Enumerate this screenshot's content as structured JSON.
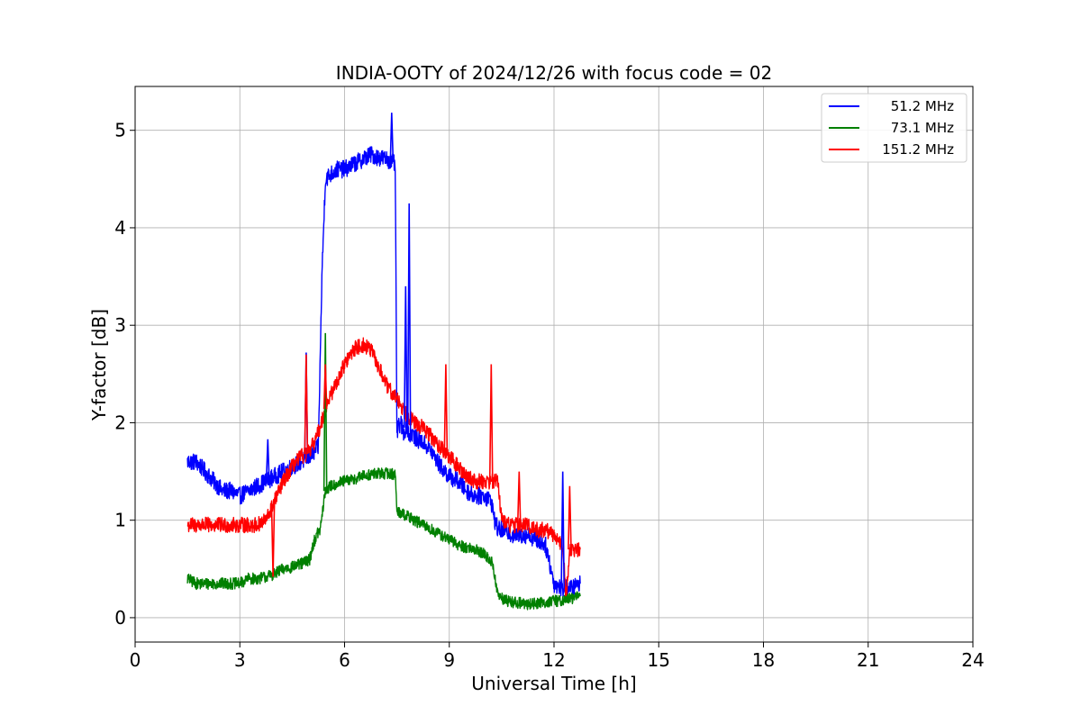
{
  "chart_data": {
    "type": "line",
    "title": "INDIA-OOTY of 2024/12/26 with focus code = 02",
    "xlabel": "Universal Time [h]",
    "ylabel": "Y-factor [dB]",
    "xlim": [
      0,
      24
    ],
    "ylim": [
      -0.25,
      5.45
    ],
    "xticks": [
      0,
      3,
      6,
      9,
      12,
      15,
      18,
      21,
      24
    ],
    "yticks": [
      0,
      1,
      2,
      3,
      4,
      5
    ],
    "grid": true,
    "legend_position": "top-right",
    "series": [
      {
        "name": "51.2 MHz",
        "color": "#0000ff",
        "x": [
          1.5,
          1.75,
          2.0,
          2.25,
          2.5,
          2.75,
          3.0,
          3.25,
          3.5,
          3.75,
          4.0,
          4.25,
          4.5,
          4.75,
          5.0,
          5.25,
          5.35,
          5.45,
          5.6,
          5.8,
          6.0,
          6.25,
          6.5,
          6.75,
          7.0,
          7.25,
          7.45,
          7.5,
          7.6,
          7.7,
          7.8,
          7.85,
          7.95,
          8.0,
          8.25,
          8.5,
          8.75,
          9.0,
          9.25,
          9.5,
          9.75,
          10.0,
          10.2,
          10.3,
          10.4,
          10.6,
          10.8,
          11.0,
          11.25,
          11.5,
          11.75,
          11.85,
          12.0,
          12.25,
          12.5,
          12.75
        ],
        "y": [
          1.6,
          1.6,
          1.5,
          1.4,
          1.3,
          1.3,
          1.25,
          1.3,
          1.35,
          1.4,
          1.45,
          1.5,
          1.55,
          1.6,
          1.65,
          1.75,
          3.5,
          4.5,
          4.55,
          4.6,
          4.6,
          4.65,
          4.7,
          4.75,
          4.72,
          4.7,
          4.65,
          1.9,
          2.0,
          1.9,
          2.0,
          1.85,
          1.9,
          1.85,
          1.8,
          1.7,
          1.55,
          1.45,
          1.4,
          1.3,
          1.25,
          1.25,
          1.2,
          1.0,
          0.9,
          0.9,
          0.85,
          0.85,
          0.85,
          0.8,
          0.75,
          0.6,
          0.35,
          0.3,
          0.3,
          0.35
        ]
      },
      {
        "name": "73.1 MHz",
        "color": "#008000",
        "x": [
          1.5,
          1.75,
          2.0,
          2.25,
          2.5,
          2.75,
          3.0,
          3.25,
          3.5,
          3.75,
          4.0,
          4.25,
          4.5,
          4.75,
          5.0,
          5.1,
          5.2,
          5.3,
          5.45,
          5.6,
          5.8,
          6.0,
          6.25,
          6.5,
          6.75,
          7.0,
          7.25,
          7.45,
          7.5,
          7.75,
          8.0,
          8.25,
          8.5,
          8.75,
          9.0,
          9.25,
          9.5,
          9.75,
          10.0,
          10.25,
          10.35,
          10.45,
          10.6,
          10.8,
          11.0,
          11.25,
          11.5,
          11.75,
          12.0,
          12.25,
          12.5,
          12.75
        ],
        "y": [
          0.4,
          0.35,
          0.35,
          0.35,
          0.35,
          0.35,
          0.35,
          0.4,
          0.4,
          0.42,
          0.45,
          0.5,
          0.52,
          0.55,
          0.6,
          0.75,
          0.85,
          0.9,
          1.3,
          1.35,
          1.38,
          1.4,
          1.42,
          1.45,
          1.47,
          1.48,
          1.48,
          1.47,
          1.1,
          1.05,
          1.0,
          0.95,
          0.9,
          0.85,
          0.8,
          0.75,
          0.72,
          0.7,
          0.65,
          0.55,
          0.3,
          0.2,
          0.18,
          0.16,
          0.15,
          0.14,
          0.15,
          0.16,
          0.17,
          0.18,
          0.2,
          0.22
        ]
      },
      {
        "name": "151.2 MHz",
        "color": "#ff0000",
        "x": [
          1.5,
          1.75,
          2.0,
          2.25,
          2.5,
          2.75,
          3.0,
          3.25,
          3.5,
          3.75,
          4.0,
          4.25,
          4.5,
          4.75,
          5.0,
          5.25,
          5.5,
          5.75,
          6.0,
          6.25,
          6.5,
          6.75,
          7.0,
          7.25,
          7.5,
          7.75,
          8.0,
          8.25,
          8.5,
          8.75,
          9.0,
          9.25,
          9.5,
          9.75,
          10.0,
          10.25,
          10.4,
          10.5,
          10.75,
          11.0,
          11.25,
          11.5,
          11.75,
          12.0,
          12.25,
          12.35,
          12.45,
          12.6,
          12.75
        ],
        "y": [
          0.95,
          0.95,
          0.95,
          0.95,
          0.95,
          0.95,
          0.95,
          0.95,
          0.95,
          1.0,
          1.2,
          1.4,
          1.55,
          1.65,
          1.7,
          1.9,
          2.2,
          2.4,
          2.6,
          2.75,
          2.8,
          2.75,
          2.55,
          2.35,
          2.25,
          2.1,
          2.0,
          1.95,
          1.85,
          1.75,
          1.65,
          1.55,
          1.45,
          1.4,
          1.4,
          1.4,
          1.4,
          1.0,
          0.95,
          0.95,
          0.95,
          0.9,
          0.9,
          0.85,
          0.75,
          0.2,
          0.7,
          0.7,
          0.7
        ]
      }
    ],
    "spikes": [
      {
        "series": 0,
        "x": 3.8,
        "y": 1.83
      },
      {
        "series": 0,
        "x": 4.9,
        "y": 2.72
      },
      {
        "series": 0,
        "x": 7.35,
        "y": 5.18
      },
      {
        "series": 0,
        "x": 7.75,
        "y": 3.4
      },
      {
        "series": 0,
        "x": 7.85,
        "y": 4.25
      },
      {
        "series": 0,
        "x": 12.25,
        "y": 1.5
      },
      {
        "series": 1,
        "x": 5.45,
        "y": 2.92
      },
      {
        "series": 2,
        "x": 3.95,
        "y": 0.42
      },
      {
        "series": 2,
        "x": 4.9,
        "y": 2.7
      },
      {
        "series": 2,
        "x": 5.45,
        "y": 2.6
      },
      {
        "series": 2,
        "x": 8.9,
        "y": 2.6
      },
      {
        "series": 2,
        "x": 10.2,
        "y": 2.6
      },
      {
        "series": 2,
        "x": 11.0,
        "y": 1.5
      },
      {
        "series": 2,
        "x": 12.45,
        "y": 1.35
      }
    ]
  }
}
